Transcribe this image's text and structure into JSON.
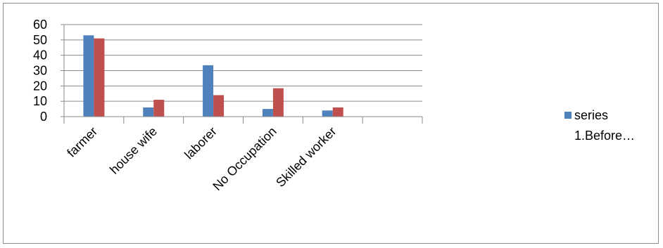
{
  "chart_data": {
    "type": "bar",
    "categories": [
      "farmer",
      "house wife",
      "laborer",
      "No Occupation",
      "Skilled worker",
      ""
    ],
    "series": [
      {
        "name": "series 1.Before…",
        "color": "#4F81BD",
        "values": [
          53,
          6,
          33.5,
          5,
          4,
          null
        ]
      },
      {
        "color": "#C0504D",
        "values": [
          51,
          11,
          14,
          18.5,
          6,
          null
        ]
      }
    ],
    "yticks": [
      "0",
      "10",
      "20",
      "30",
      "40",
      "50",
      "60"
    ],
    "ylim": [
      0,
      60
    ],
    "grid": true,
    "legend": {
      "position": "right",
      "lines": [
        "series",
        "1.Before…"
      ]
    }
  }
}
